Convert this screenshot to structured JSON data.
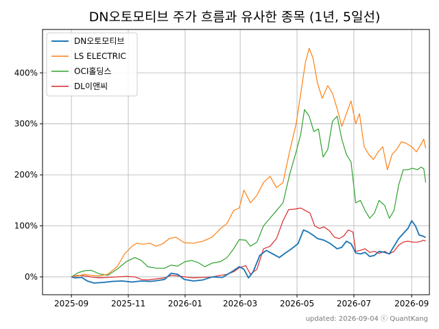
{
  "chart_data": {
    "type": "line",
    "title": "DN오토모티브 주가 흐름과 유사한 종목 (1년, 5일선)",
    "xlabel": "",
    "ylabel": "",
    "x_range": [
      "2025-08-01",
      "2026-09-20"
    ],
    "ylim": [
      -35,
      485
    ],
    "x_ticks": [
      "2025-09",
      "2025-11",
      "2026-01",
      "2026-03",
      "2026-05",
      "2026-07",
      "2026-09"
    ],
    "y_ticks": [
      0,
      100,
      200,
      300,
      400
    ],
    "y_tick_labels": [
      "0%",
      "100%",
      "200%",
      "300%",
      "400%"
    ],
    "grid": true,
    "legend_position": "top-left",
    "footer": "updated: 2026-09-04 ⓒ QuantKang",
    "series": [
      {
        "name": "DN오토모티브",
        "color": "#1f77b4",
        "points": [
          [
            "2025-09-01",
            0
          ],
          [
            "2025-09-05",
            -2
          ],
          [
            "2025-09-12",
            -1
          ],
          [
            "2025-09-18",
            -8
          ],
          [
            "2025-09-25",
            -12
          ],
          [
            "2025-10-05",
            -11
          ],
          [
            "2025-10-15",
            -9
          ],
          [
            "2025-10-25",
            -8
          ],
          [
            "2025-11-05",
            -10
          ],
          [
            "2025-11-15",
            -8
          ],
          [
            "2025-11-25",
            -9
          ],
          [
            "2025-12-03",
            -7
          ],
          [
            "2025-12-10",
            -5
          ],
          [
            "2025-12-17",
            7
          ],
          [
            "2025-12-24",
            5
          ],
          [
            "2025-12-31",
            -5
          ],
          [
            "2026-01-10",
            -8
          ],
          [
            "2026-01-20",
            -6
          ],
          [
            "2026-01-30",
            0
          ],
          [
            "2026-02-10",
            -1
          ],
          [
            "2026-02-20",
            10
          ],
          [
            "2026-02-28",
            20
          ],
          [
            "2026-03-05",
            15
          ],
          [
            "2026-03-10",
            -2
          ],
          [
            "2026-03-15",
            10
          ],
          [
            "2026-03-22",
            42
          ],
          [
            "2026-03-29",
            52
          ],
          [
            "2026-04-05",
            45
          ],
          [
            "2026-04-12",
            38
          ],
          [
            "2026-04-18",
            46
          ],
          [
            "2026-04-25",
            55
          ],
          [
            "2026-05-02",
            65
          ],
          [
            "2026-05-08",
            92
          ],
          [
            "2026-05-13",
            88
          ],
          [
            "2026-05-18",
            82
          ],
          [
            "2026-05-23",
            75
          ],
          [
            "2026-05-30",
            72
          ],
          [
            "2026-06-06",
            65
          ],
          [
            "2026-06-13",
            55
          ],
          [
            "2026-06-18",
            58
          ],
          [
            "2026-06-23",
            70
          ],
          [
            "2026-06-28",
            65
          ],
          [
            "2026-07-03",
            47
          ],
          [
            "2026-07-08",
            45
          ],
          [
            "2026-07-13",
            48
          ],
          [
            "2026-07-18",
            40
          ],
          [
            "2026-07-23",
            42
          ],
          [
            "2026-07-28",
            50
          ],
          [
            "2026-08-03",
            48
          ],
          [
            "2026-08-08",
            45
          ],
          [
            "2026-08-13",
            60
          ],
          [
            "2026-08-18",
            75
          ],
          [
            "2026-08-23",
            85
          ],
          [
            "2026-08-28",
            95
          ],
          [
            "2026-09-01",
            110
          ],
          [
            "2026-09-05",
            100
          ],
          [
            "2026-09-09",
            82
          ],
          [
            "2026-09-13",
            80
          ],
          [
            "2026-09-16",
            77
          ]
        ]
      },
      {
        "name": "LS ELECTRIC",
        "color": "#ff7f0e",
        "points": [
          [
            "2025-09-01",
            0
          ],
          [
            "2025-09-08",
            2
          ],
          [
            "2025-09-15",
            5
          ],
          [
            "2025-09-22",
            3
          ],
          [
            "2025-10-01",
            2
          ],
          [
            "2025-10-10",
            5
          ],
          [
            "2025-10-20",
            20
          ],
          [
            "2025-10-28",
            45
          ],
          [
            "2025-11-05",
            60
          ],
          [
            "2025-11-10",
            66
          ],
          [
            "2025-11-17",
            64
          ],
          [
            "2025-11-24",
            66
          ],
          [
            "2025-12-01",
            60
          ],
          [
            "2025-12-08",
            65
          ],
          [
            "2025-12-15",
            75
          ],
          [
            "2025-12-22",
            78
          ],
          [
            "2025-12-31",
            67
          ],
          [
            "2026-01-10",
            66
          ],
          [
            "2026-01-20",
            70
          ],
          [
            "2026-01-30",
            78
          ],
          [
            "2026-02-08",
            95
          ],
          [
            "2026-02-15",
            105
          ],
          [
            "2026-02-22",
            130
          ],
          [
            "2026-02-28",
            135
          ],
          [
            "2026-03-05",
            170
          ],
          [
            "2026-03-12",
            145
          ],
          [
            "2026-03-19",
            160
          ],
          [
            "2026-03-26",
            185
          ],
          [
            "2026-04-02",
            197
          ],
          [
            "2026-04-09",
            175
          ],
          [
            "2026-04-16",
            185
          ],
          [
            "2026-04-23",
            245
          ],
          [
            "2026-04-30",
            300
          ],
          [
            "2026-05-05",
            360
          ],
          [
            "2026-05-10",
            420
          ],
          [
            "2026-05-14",
            448
          ],
          [
            "2026-05-18",
            430
          ],
          [
            "2026-05-23",
            380
          ],
          [
            "2026-05-28",
            350
          ],
          [
            "2026-06-03",
            375
          ],
          [
            "2026-06-08",
            360
          ],
          [
            "2026-06-13",
            330
          ],
          [
            "2026-06-18",
            295
          ],
          [
            "2026-06-23",
            320
          ],
          [
            "2026-06-28",
            345
          ],
          [
            "2026-07-03",
            300
          ],
          [
            "2026-07-07",
            320
          ],
          [
            "2026-07-12",
            255
          ],
          [
            "2026-07-17",
            240
          ],
          [
            "2026-07-22",
            230
          ],
          [
            "2026-07-27",
            245
          ],
          [
            "2026-08-01",
            255
          ],
          [
            "2026-08-06",
            210
          ],
          [
            "2026-08-11",
            240
          ],
          [
            "2026-08-16",
            250
          ],
          [
            "2026-08-21",
            265
          ],
          [
            "2026-08-26",
            262
          ],
          [
            "2026-09-01",
            255
          ],
          [
            "2026-09-06",
            245
          ],
          [
            "2026-09-11",
            260
          ],
          [
            "2026-09-14",
            270
          ],
          [
            "2026-09-16",
            252
          ]
        ]
      },
      {
        "name": "OCI홀딩스",
        "color": "#2ca02c",
        "points": [
          [
            "2025-09-01",
            0
          ],
          [
            "2025-09-08",
            8
          ],
          [
            "2025-09-15",
            12
          ],
          [
            "2025-09-22",
            13
          ],
          [
            "2025-10-01",
            6
          ],
          [
            "2025-10-10",
            3
          ],
          [
            "2025-10-20",
            15
          ],
          [
            "2025-10-30",
            30
          ],
          [
            "2025-11-08",
            38
          ],
          [
            "2025-11-15",
            32
          ],
          [
            "2025-11-22",
            20
          ],
          [
            "2025-12-01",
            17
          ],
          [
            "2025-12-10",
            17
          ],
          [
            "2025-12-17",
            23
          ],
          [
            "2025-12-24",
            21
          ],
          [
            "2026-01-01",
            30
          ],
          [
            "2026-01-08",
            32
          ],
          [
            "2026-01-15",
            28
          ],
          [
            "2026-01-22",
            20
          ],
          [
            "2026-01-30",
            27
          ],
          [
            "2026-02-08",
            30
          ],
          [
            "2026-02-15",
            38
          ],
          [
            "2026-02-22",
            55
          ],
          [
            "2026-02-28",
            73
          ],
          [
            "2026-03-07",
            72
          ],
          [
            "2026-03-12",
            60
          ],
          [
            "2026-03-19",
            68
          ],
          [
            "2026-03-26",
            100
          ],
          [
            "2026-04-02",
            115
          ],
          [
            "2026-04-09",
            130
          ],
          [
            "2026-04-16",
            145
          ],
          [
            "2026-04-23",
            200
          ],
          [
            "2026-04-30",
            245
          ],
          [
            "2026-05-05",
            280
          ],
          [
            "2026-05-09",
            328
          ],
          [
            "2026-05-14",
            315
          ],
          [
            "2026-05-19",
            285
          ],
          [
            "2026-05-24",
            290
          ],
          [
            "2026-05-29",
            235
          ],
          [
            "2026-06-03",
            250
          ],
          [
            "2026-06-08",
            305
          ],
          [
            "2026-06-13",
            315
          ],
          [
            "2026-06-18",
            270
          ],
          [
            "2026-06-23",
            240
          ],
          [
            "2026-06-28",
            225
          ],
          [
            "2026-07-03",
            145
          ],
          [
            "2026-07-08",
            150
          ],
          [
            "2026-07-13",
            130
          ],
          [
            "2026-07-18",
            115
          ],
          [
            "2026-07-23",
            125
          ],
          [
            "2026-07-28",
            150
          ],
          [
            "2026-08-03",
            140
          ],
          [
            "2026-08-08",
            115
          ],
          [
            "2026-08-13",
            130
          ],
          [
            "2026-08-18",
            180
          ],
          [
            "2026-08-23",
            210
          ],
          [
            "2026-08-28",
            210
          ],
          [
            "2026-09-02",
            213
          ],
          [
            "2026-09-07",
            210
          ],
          [
            "2026-09-11",
            215
          ],
          [
            "2026-09-14",
            212
          ],
          [
            "2026-09-16",
            185
          ]
        ]
      },
      {
        "name": "DL이앤씨",
        "color": "#d62728",
        "points": [
          [
            "2025-09-01",
            0
          ],
          [
            "2025-09-08",
            3
          ],
          [
            "2025-09-15",
            2
          ],
          [
            "2025-09-22",
            0
          ],
          [
            "2025-10-01",
            -2
          ],
          [
            "2025-10-10",
            -1
          ],
          [
            "2025-10-20",
            0
          ],
          [
            "2025-10-30",
            1
          ],
          [
            "2025-11-08",
            0
          ],
          [
            "2025-11-15",
            -5
          ],
          [
            "2025-11-22",
            -6
          ],
          [
            "2025-12-01",
            -4
          ],
          [
            "2025-12-10",
            -2
          ],
          [
            "2025-12-17",
            3
          ],
          [
            "2025-12-24",
            2
          ],
          [
            "2026-01-01",
            0
          ],
          [
            "2026-01-10",
            -2
          ],
          [
            "2026-01-20",
            -1
          ],
          [
            "2026-01-30",
            0
          ],
          [
            "2026-02-08",
            3
          ],
          [
            "2026-02-15",
            5
          ],
          [
            "2026-02-22",
            10
          ],
          [
            "2026-02-28",
            18
          ],
          [
            "2026-03-07",
            22
          ],
          [
            "2026-03-12",
            5
          ],
          [
            "2026-03-19",
            15
          ],
          [
            "2026-03-26",
            55
          ],
          [
            "2026-04-02",
            60
          ],
          [
            "2026-04-09",
            75
          ],
          [
            "2026-04-16",
            110
          ],
          [
            "2026-04-22",
            132
          ],
          [
            "2026-04-29",
            133
          ],
          [
            "2026-05-05",
            135
          ],
          [
            "2026-05-10",
            130
          ],
          [
            "2026-05-15",
            125
          ],
          [
            "2026-05-20",
            100
          ],
          [
            "2026-05-25",
            95
          ],
          [
            "2026-05-30",
            98
          ],
          [
            "2026-06-05",
            90
          ],
          [
            "2026-06-10",
            78
          ],
          [
            "2026-06-15",
            75
          ],
          [
            "2026-06-20",
            80
          ],
          [
            "2026-06-25",
            92
          ],
          [
            "2026-06-30",
            88
          ],
          [
            "2026-07-03",
            50
          ],
          [
            "2026-07-08",
            52
          ],
          [
            "2026-07-13",
            55
          ],
          [
            "2026-07-18",
            48
          ],
          [
            "2026-07-23",
            50
          ],
          [
            "2026-07-28",
            46
          ],
          [
            "2026-08-03",
            50
          ],
          [
            "2026-08-08",
            45
          ],
          [
            "2026-08-13",
            50
          ],
          [
            "2026-08-18",
            62
          ],
          [
            "2026-08-23",
            68
          ],
          [
            "2026-08-28",
            70
          ],
          [
            "2026-09-02",
            68
          ],
          [
            "2026-09-07",
            68
          ],
          [
            "2026-09-11",
            70
          ],
          [
            "2026-09-14",
            72
          ],
          [
            "2026-09-16",
            70
          ]
        ]
      }
    ]
  }
}
